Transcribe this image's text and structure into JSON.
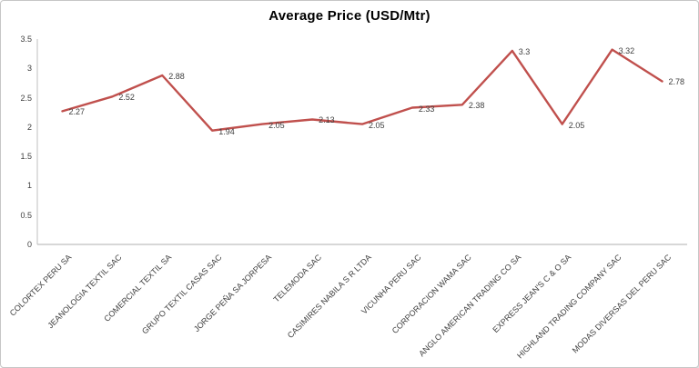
{
  "chart_data": {
    "type": "line",
    "title": "Average Price (USD/Mtr)",
    "categories": [
      "COLORTEX PERU SA",
      "JEANOLOGIA TEXTIL SAC",
      "COMERCIAL TEXTIL SA",
      "GRUPO TEXTIL CASAS SAC",
      "JORGE PEÑA SA JORPESA",
      "TELEMODA SAC",
      "CASIMIRES NABILA S R LTDA",
      "VICUNHA PERU SAC",
      "CORPORACION WAMA SAC",
      "ANGLO AMERICAN TRADING CO SA",
      "EXPRESS JEAN'S C & O SA",
      "HIGHLAND TRADING COMPANY SAC",
      "MODAS DIVERSAS DEL PERU SAC"
    ],
    "values": [
      2.27,
      2.52,
      2.88,
      1.94,
      2.05,
      2.13,
      2.05,
      2.33,
      2.38,
      3.3,
      2.05,
      3.32,
      2.78
    ],
    "data_labels": [
      "2.27",
      "2.52",
      "2.88",
      "1.94",
      "2.05",
      "2.13",
      "2.05",
      "2.33",
      "2.38",
      "3.3",
      "2.05",
      "3.32",
      "2.78"
    ],
    "xlabel": "",
    "ylabel": "",
    "ylim": [
      0,
      3.5
    ],
    "y_ticks": [
      "0",
      "0.5",
      "1",
      "1.5",
      "2",
      "2.5",
      "3",
      "3.5"
    ],
    "grid": false,
    "legend": "none",
    "line_color": "#c0504d",
    "axis_color": "#bfbfbf",
    "label_color": "#3f3f3f",
    "title_color": "#000000"
  }
}
